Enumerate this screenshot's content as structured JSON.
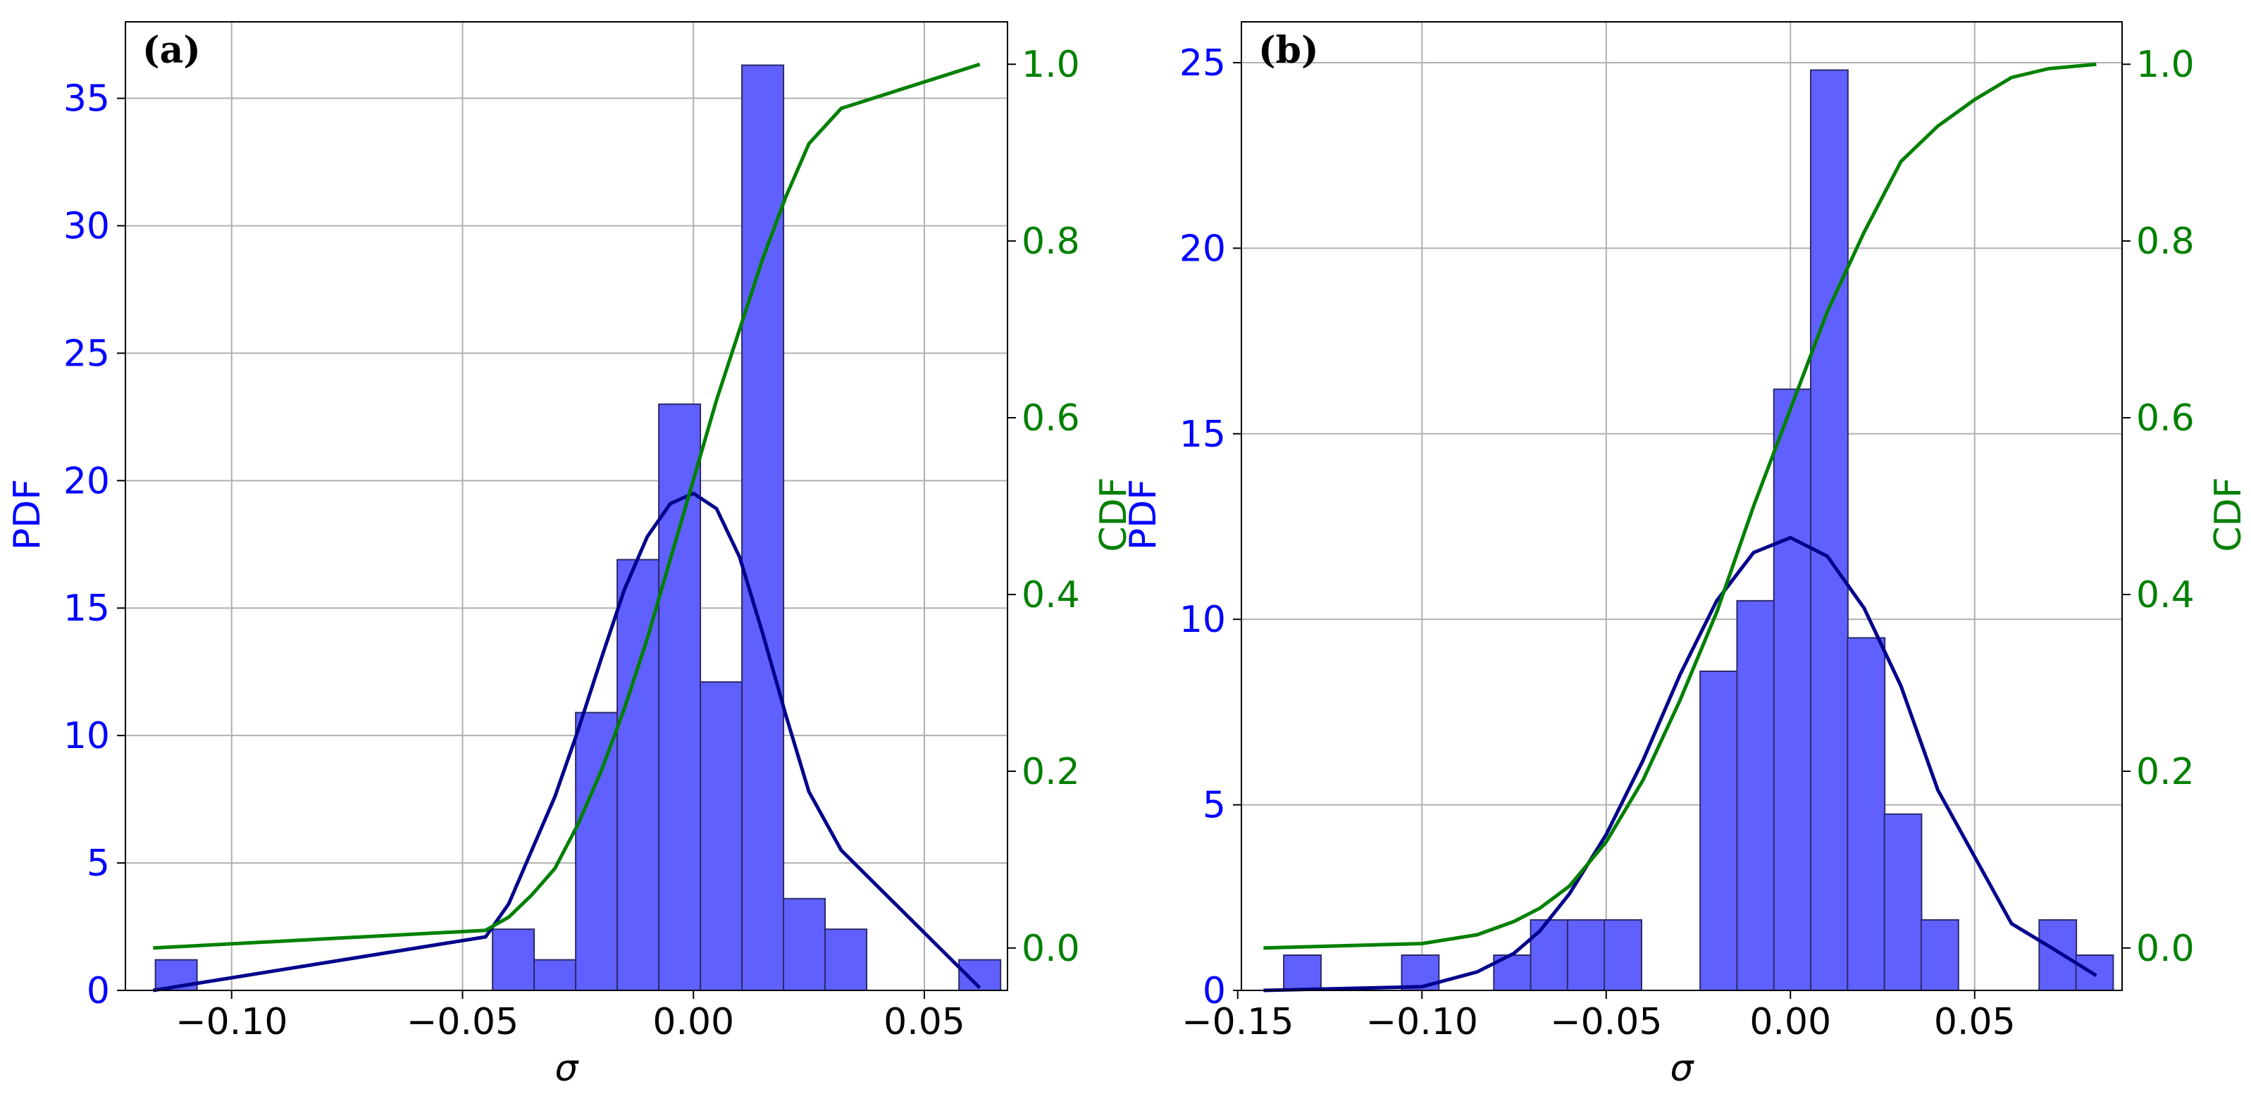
{
  "colors": {
    "pdf_axis": "#0000ff",
    "cdf_axis": "#008000",
    "bar_fill": "#6060ff",
    "bar_edge": "#2a2a6a",
    "kde_line": "#00008b",
    "cdf_line": "#008000",
    "grid": "#b0b0b0"
  },
  "chart_data": [
    {
      "type": "bar",
      "panel_label": "(a)",
      "xlabel": "σ",
      "ylabel": "PDF",
      "ylabel_right": "CDF",
      "xlim": [
        -0.123,
        0.068
      ],
      "ylim": [
        0,
        38
      ],
      "ylim_right": [
        -0.048,
        1.048
      ],
      "xticks": [
        -0.1,
        -0.05,
        0.0,
        0.05
      ],
      "xtick_labels": [
        "−0.10",
        "−0.05",
        "0.00",
        "0.05"
      ],
      "yticks": [
        0,
        5,
        10,
        15,
        20,
        25,
        30,
        35
      ],
      "ytick_labels": [
        "0",
        "5",
        "10",
        "15",
        "20",
        "25",
        "30",
        "35"
      ],
      "yticks_right": [
        0.0,
        0.2,
        0.4,
        0.6,
        0.8,
        1.0
      ],
      "ytick_labels_right": [
        "0.0",
        "0.2",
        "0.4",
        "0.6",
        "0.8",
        "1.0"
      ],
      "grid": true,
      "bin_width": 0.009,
      "bins": [
        {
          "x": -0.1165,
          "height": 1.2
        },
        {
          "x": -0.0435,
          "height": 2.4
        },
        {
          "x": -0.0345,
          "height": 1.2
        },
        {
          "x": -0.0255,
          "height": 10.9
        },
        {
          "x": -0.0165,
          "height": 16.9
        },
        {
          "x": -0.0075,
          "height": 23.0
        },
        {
          "x": 0.0015,
          "height": 12.1
        },
        {
          "x": 0.0105,
          "height": 36.3
        },
        {
          "x": 0.0195,
          "height": 3.6
        },
        {
          "x": 0.0285,
          "height": 2.4
        },
        {
          "x": 0.0575,
          "height": 1.2
        }
      ],
      "series": [
        {
          "kind": "pdf_curve",
          "axis": "left",
          "x": [
            -0.117,
            -0.045,
            -0.04,
            -0.035,
            -0.03,
            -0.025,
            -0.02,
            -0.015,
            -0.01,
            -0.005,
            0.0,
            0.005,
            0.01,
            0.015,
            0.02,
            0.025,
            0.032,
            0.062
          ],
          "y": [
            0.0,
            2.1,
            3.4,
            5.5,
            7.6,
            10.2,
            13.0,
            15.7,
            17.8,
            19.1,
            19.5,
            18.9,
            17.0,
            14.0,
            10.8,
            7.8,
            5.5,
            0.1
          ]
        },
        {
          "kind": "cdf_curve",
          "axis": "right",
          "x": [
            -0.117,
            -0.045,
            -0.04,
            -0.035,
            -0.03,
            -0.025,
            -0.02,
            -0.015,
            -0.01,
            -0.005,
            0.0,
            0.005,
            0.01,
            0.015,
            0.02,
            0.025,
            0.032,
            0.062
          ],
          "y": [
            0.0,
            0.02,
            0.035,
            0.06,
            0.09,
            0.14,
            0.2,
            0.27,
            0.35,
            0.44,
            0.53,
            0.62,
            0.7,
            0.78,
            0.85,
            0.91,
            0.95,
            1.0
          ]
        }
      ]
    },
    {
      "type": "bar",
      "panel_label": "(b)",
      "xlabel": "σ",
      "ylabel": "PDF",
      "ylabel_right": "CDF",
      "xlim": [
        -0.149,
        0.09
      ],
      "ylim": [
        0,
        26.1
      ],
      "ylim_right": [
        -0.048,
        1.048
      ],
      "xticks": [
        -0.15,
        -0.1,
        -0.05,
        0.0,
        0.05
      ],
      "xtick_labels": [
        "−0.15",
        "−0.10",
        "−0.05",
        "0.00",
        "0.05"
      ],
      "yticks": [
        0,
        5,
        10,
        15,
        20,
        25
      ],
      "ytick_labels": [
        "0",
        "5",
        "10",
        "15",
        "20",
        "25"
      ],
      "yticks_right": [
        0.0,
        0.2,
        0.4,
        0.6,
        0.8,
        1.0
      ],
      "ytick_labels_right": [
        "0.0",
        "0.2",
        "0.4",
        "0.6",
        "0.8",
        "1.0"
      ],
      "grid": true,
      "bin_width": 0.0101,
      "bins": [
        {
          "x": -0.1375,
          "height": 0.95
        },
        {
          "x": -0.1055,
          "height": 0.95
        },
        {
          "x": -0.0805,
          "height": 0.95
        },
        {
          "x": -0.0705,
          "height": 1.9
        },
        {
          "x": -0.0605,
          "height": 1.9
        },
        {
          "x": -0.0505,
          "height": 1.9
        },
        {
          "x": -0.0245,
          "height": 8.6
        },
        {
          "x": -0.0145,
          "height": 10.5
        },
        {
          "x": -0.0045,
          "height": 16.2
        },
        {
          "x": 0.0055,
          "height": 24.8
        },
        {
          "x": 0.0155,
          "height": 9.5
        },
        {
          "x": 0.0255,
          "height": 4.75
        },
        {
          "x": 0.0355,
          "height": 1.9
        },
        {
          "x": 0.0675,
          "height": 1.9
        },
        {
          "x": 0.0775,
          "height": 0.95
        }
      ],
      "series": [
        {
          "kind": "pdf_curve",
          "axis": "left",
          "x": [
            -0.143,
            -0.1,
            -0.085,
            -0.075,
            -0.068,
            -0.06,
            -0.05,
            -0.04,
            -0.03,
            -0.02,
            -0.01,
            0.0,
            0.01,
            0.02,
            0.03,
            0.04,
            0.05,
            0.06,
            0.07,
            0.083
          ],
          "y": [
            0.0,
            0.1,
            0.5,
            1.0,
            1.6,
            2.6,
            4.2,
            6.2,
            8.5,
            10.5,
            11.8,
            12.2,
            11.7,
            10.3,
            8.2,
            5.4,
            3.6,
            1.8,
            1.2,
            0.4
          ]
        },
        {
          "kind": "cdf_curve",
          "axis": "right",
          "x": [
            -0.143,
            -0.1,
            -0.085,
            -0.075,
            -0.068,
            -0.06,
            -0.05,
            -0.04,
            -0.03,
            -0.02,
            -0.01,
            0.0,
            0.01,
            0.02,
            0.03,
            0.04,
            0.05,
            0.06,
            0.07,
            0.083
          ],
          "y": [
            0.0,
            0.005,
            0.015,
            0.03,
            0.045,
            0.07,
            0.12,
            0.19,
            0.28,
            0.38,
            0.5,
            0.61,
            0.72,
            0.81,
            0.89,
            0.93,
            0.96,
            0.985,
            0.995,
            1.0
          ]
        }
      ]
    }
  ]
}
